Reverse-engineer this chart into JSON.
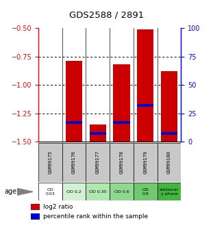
{
  "title": "GDS2588 / 2891",
  "samples": [
    "GSM99175",
    "GSM99176",
    "GSM99177",
    "GSM99178",
    "GSM99179",
    "GSM99180"
  ],
  "age_labels": [
    "OD\n0.03",
    "OD 0.2",
    "OD 0.35",
    "OD 0.6",
    "OD\n0.9",
    "stationar\ny phase"
  ],
  "age_colors": [
    "#ffffff",
    "#d4f0d4",
    "#b8e8b8",
    "#9cdc9c",
    "#80d080",
    "#50c050"
  ],
  "bar_tops": [
    -1.5,
    -0.79,
    -1.35,
    -0.82,
    -0.51,
    -0.88
  ],
  "bar_bottom": -1.5,
  "blue_positions": [
    -1.5,
    -1.33,
    -1.43,
    -1.33,
    -1.18,
    -1.43
  ],
  "ylim": [
    -1.5,
    -0.5
  ],
  "yticks_left": [
    -1.5,
    -1.25,
    -1.0,
    -0.75,
    -0.5
  ],
  "yticks_right": [
    0,
    25,
    50,
    75,
    100
  ],
  "bar_color": "#cc0000",
  "blue_color": "#0000cc",
  "sample_bg": "#c8c8c8",
  "bar_width": 0.7,
  "grid_lines": [
    -0.75,
    -1.0,
    -1.25
  ]
}
